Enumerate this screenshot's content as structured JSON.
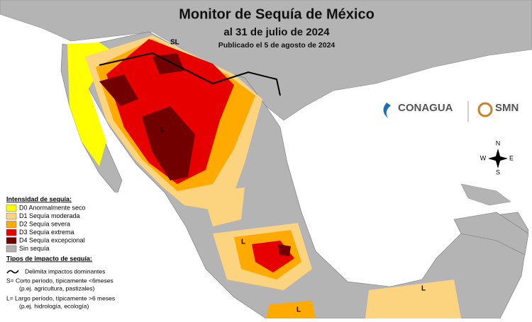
{
  "header": {
    "title": "Monitor de Sequía de México",
    "subtitle": "al 31 de julio de 2024",
    "published": "Publicado el 5 de agosto de 2024"
  },
  "legend": {
    "intensity_title": "Intensidad de sequía:",
    "items": [
      {
        "label": "D0 Anormalmente seco",
        "color": "#ffff00"
      },
      {
        "label": "D1 Sequía moderada",
        "color": "#fcd37f"
      },
      {
        "label": "D2 Sequía severa",
        "color": "#ffaa00"
      },
      {
        "label": "D3 Sequía extrema",
        "color": "#e60000"
      },
      {
        "label": "D4 Sequía excepcional",
        "color": "#730000"
      },
      {
        "label": "Sin sequía",
        "color": "#b2b2b2"
      }
    ],
    "impact_title": "Tipos de impacto de sequía:",
    "impact_items": [
      "Delimita impactos dominantes",
      "S= Corto período, típicamente <6meses",
      "(p.ej. agricultura, pastizales)",
      "L= Largo período, típicamente >6 meses",
      "(p.ej. hidrología, ecología)"
    ]
  },
  "logos": {
    "conagua": "CONAGUA",
    "smn": "SMN"
  },
  "compass": {
    "north": "N",
    "east": "E",
    "south": "S",
    "west": "W"
  },
  "map_labels": [
    "SL",
    "L",
    "L",
    "L",
    "L"
  ]
}
